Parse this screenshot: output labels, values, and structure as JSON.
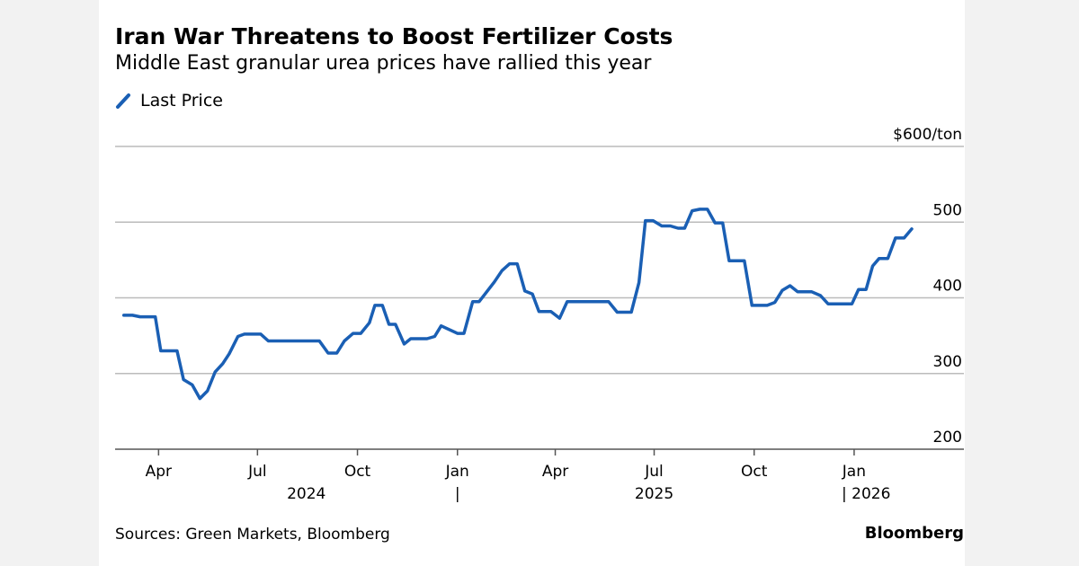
{
  "title": "Iran War Threatens to Boost Fertilizer Costs",
  "subtitle": "Middle East granular urea prices have rallied this year",
  "source": "Sources: Green Markets, Bloomberg",
  "brand": "Bloomberg",
  "chart_data": {
    "type": "line",
    "title": "Iran War Threatens to Boost Fertilizer Costs",
    "subtitle": "Middle East granular urea prices have rallied this year",
    "legend": {
      "position": "top-left",
      "entries": [
        "Last Price"
      ]
    },
    "grid": true,
    "ylim": [
      200,
      600
    ],
    "xlim": [
      "2024-02-21",
      "2026-04-12"
    ],
    "y_ticks": [
      {
        "value": 600,
        "label": "$600/ton"
      },
      {
        "value": 500,
        "label": "500"
      },
      {
        "value": 400,
        "label": "400"
      },
      {
        "value": 300,
        "label": "300"
      },
      {
        "value": 200,
        "label": "200"
      }
    ],
    "x_ticks": [
      {
        "date": "2024-04-01",
        "label": "Apr"
      },
      {
        "date": "2024-07-01",
        "label": "Jul"
      },
      {
        "date": "2024-10-01",
        "label": "Oct"
      },
      {
        "date": "2025-01-01",
        "label": "Jan"
      },
      {
        "date": "2025-04-01",
        "label": "Apr"
      },
      {
        "date": "2025-07-01",
        "label": "Jul"
      },
      {
        "date": "2025-10-01",
        "label": "Oct"
      },
      {
        "date": "2026-01-01",
        "label": "Jan"
      }
    ],
    "year_labels": [
      {
        "date": "2024-08-15",
        "label": "2024"
      },
      {
        "date": "2025-01-01",
        "label": "|"
      },
      {
        "date": "2025-07-01",
        "label": "2025"
      },
      {
        "date": "2026-01-12",
        "label": "| 2026"
      }
    ],
    "line_color": "#1a5fb4",
    "series": [
      {
        "name": "Last Price",
        "points": [
          [
            "2024-02-29",
            377
          ],
          [
            "2024-03-08",
            377
          ],
          [
            "2024-03-15",
            375
          ],
          [
            "2024-03-29",
            375
          ],
          [
            "2024-04-03",
            330
          ],
          [
            "2024-04-18",
            330
          ],
          [
            "2024-04-24",
            292
          ],
          [
            "2024-05-02",
            285
          ],
          [
            "2024-05-09",
            267
          ],
          [
            "2024-05-16",
            277
          ],
          [
            "2024-05-23",
            302
          ],
          [
            "2024-05-30",
            313
          ],
          [
            "2024-06-05",
            326
          ],
          [
            "2024-06-13",
            349
          ],
          [
            "2024-06-19",
            352
          ],
          [
            "2024-07-04",
            352
          ],
          [
            "2024-07-11",
            343
          ],
          [
            "2024-08-27",
            343
          ],
          [
            "2024-09-04",
            327
          ],
          [
            "2024-09-12",
            327
          ],
          [
            "2024-09-19",
            343
          ],
          [
            "2024-09-27",
            353
          ],
          [
            "2024-10-04",
            353
          ],
          [
            "2024-10-12",
            367
          ],
          [
            "2024-10-17",
            390
          ],
          [
            "2024-10-24",
            390
          ],
          [
            "2024-10-30",
            365
          ],
          [
            "2024-11-05",
            365
          ],
          [
            "2024-11-13",
            339
          ],
          [
            "2024-11-19",
            346
          ],
          [
            "2024-12-04",
            346
          ],
          [
            "2024-12-11",
            349
          ],
          [
            "2024-12-17",
            363
          ],
          [
            "2025-01-01",
            353
          ],
          [
            "2025-01-07",
            353
          ],
          [
            "2025-01-15",
            395
          ],
          [
            "2025-01-21",
            395
          ],
          [
            "2025-02-04",
            421
          ],
          [
            "2025-02-11",
            436
          ],
          [
            "2025-02-18",
            445
          ],
          [
            "2025-02-25",
            445
          ],
          [
            "2025-03-04",
            409
          ],
          [
            "2025-03-11",
            405
          ],
          [
            "2025-03-17",
            382
          ],
          [
            "2025-03-28",
            382
          ],
          [
            "2025-04-05",
            373
          ],
          [
            "2025-04-12",
            395
          ],
          [
            "2025-05-20",
            395
          ],
          [
            "2025-05-28",
            381
          ],
          [
            "2025-06-10",
            381
          ],
          [
            "2025-06-17",
            420
          ],
          [
            "2025-06-23",
            502
          ],
          [
            "2025-06-30",
            502
          ],
          [
            "2025-07-08",
            495
          ],
          [
            "2025-07-16",
            495
          ],
          [
            "2025-07-23",
            492
          ],
          [
            "2025-07-29",
            492
          ],
          [
            "2025-08-05",
            515
          ],
          [
            "2025-08-12",
            517
          ],
          [
            "2025-08-19",
            517
          ],
          [
            "2025-08-26",
            499
          ],
          [
            "2025-09-02",
            499
          ],
          [
            "2025-09-08",
            449
          ],
          [
            "2025-09-22",
            449
          ],
          [
            "2025-09-29",
            390
          ],
          [
            "2025-10-13",
            390
          ],
          [
            "2025-10-20",
            394
          ],
          [
            "2025-10-27",
            410
          ],
          [
            "2025-11-03",
            416
          ],
          [
            "2025-11-10",
            408
          ],
          [
            "2025-11-23",
            408
          ],
          [
            "2025-12-01",
            403
          ],
          [
            "2025-12-08",
            392
          ],
          [
            "2025-12-30",
            392
          ],
          [
            "2026-01-05",
            411
          ],
          [
            "2026-01-12",
            411
          ],
          [
            "2026-01-18",
            442
          ],
          [
            "2026-01-24",
            452
          ],
          [
            "2026-02-01",
            452
          ],
          [
            "2026-02-08",
            479
          ],
          [
            "2026-02-16",
            479
          ],
          [
            "2026-02-23",
            491
          ]
        ]
      }
    ]
  }
}
